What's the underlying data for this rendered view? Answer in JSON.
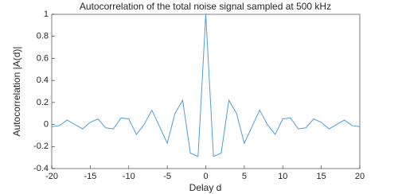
{
  "chart_data": {
    "type": "line",
    "title": "Autocorrelation of the total noise signal sampled at 500 kHz",
    "xlabel": "Delay d",
    "ylabel": "Autocorrelation |A(d)|",
    "x": [
      -20,
      -19,
      -18,
      -17,
      -16,
      -15,
      -14,
      -13,
      -12,
      -11,
      -10,
      -9,
      -8,
      -7,
      -6,
      -5,
      -4,
      -3,
      -2,
      -1,
      0,
      1,
      2,
      3,
      4,
      5,
      6,
      7,
      8,
      9,
      10,
      11,
      12,
      13,
      14,
      15,
      16,
      17,
      18,
      19,
      20
    ],
    "series": [
      {
        "color": "#4d9ed9",
        "values": [
          -0.02,
          -0.01,
          0.04,
          0.0,
          -0.04,
          0.02,
          0.05,
          -0.03,
          -0.04,
          0.06,
          0.05,
          -0.09,
          0.0,
          0.13,
          -0.02,
          -0.17,
          0.1,
          0.22,
          -0.26,
          -0.29,
          1,
          -0.29,
          -0.26,
          0.22,
          0.1,
          -0.17,
          -0.02,
          0.13,
          0.0,
          -0.09,
          0.05,
          0.06,
          -0.04,
          -0.03,
          0.05,
          0.02,
          -0.04,
          0.0,
          0.04,
          -0.01,
          -0.02
        ]
      }
    ],
    "xlim": [
      -20,
      20
    ],
    "xticks": [
      -20,
      -15,
      -10,
      -5,
      0,
      5,
      10,
      15,
      20
    ],
    "ylim": [
      -0.4,
      1
    ],
    "yticks": [
      -0.4,
      -0.2,
      0,
      0.2,
      0.4,
      0.6,
      0.8,
      1
    ],
    "grid": false
  }
}
